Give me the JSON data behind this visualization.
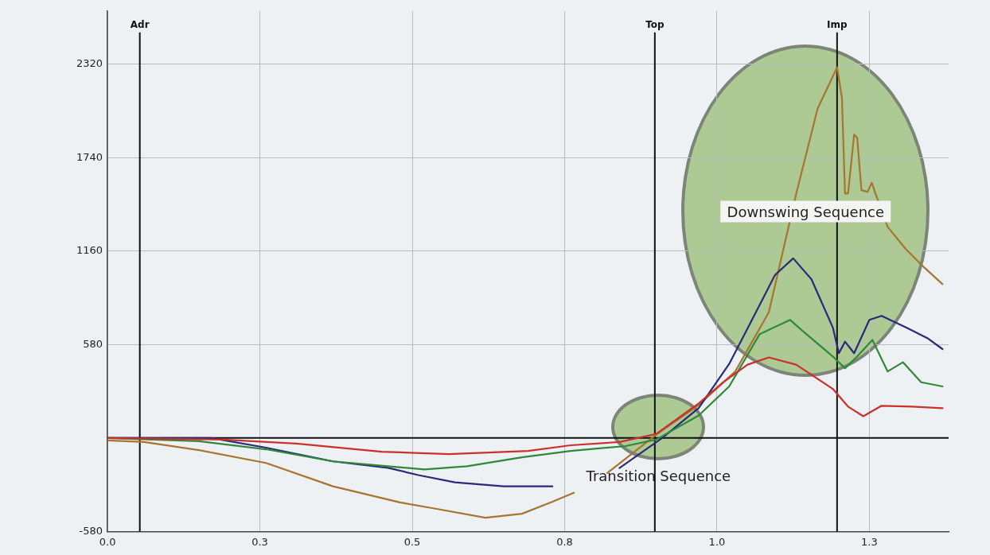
{
  "chart_data": {
    "type": "line",
    "xlim": [
      0,
      1.38
    ],
    "ylim": [
      -580,
      2650
    ],
    "xticks": [
      {
        "value": 0,
        "label": "0.0"
      },
      {
        "value": 0.25,
        "label": "0.3"
      },
      {
        "value": 0.5,
        "label": "0.5"
      },
      {
        "value": 0.75,
        "label": "0.8"
      },
      {
        "value": 1,
        "label": "1.0"
      },
      {
        "value": 1.25,
        "label": "1.3"
      }
    ],
    "yticks": [
      -580,
      {
        "value": 0,
        "label": null
      },
      580,
      1160,
      1740,
      2320
    ],
    "grid": true,
    "legend": false,
    "marker": "none",
    "line_style": "solid",
    "ref_lines": [
      {
        "axis": "x",
        "value": 0.053,
        "label": "Adr",
        "color": "#111111"
      },
      {
        "axis": "x",
        "value": 0.898,
        "label": "Top",
        "color": "#111111"
      },
      {
        "axis": "x",
        "value": 1.197,
        "label": "Imp",
        "color": "#111111"
      },
      {
        "axis": "y",
        "value": 0,
        "label": null,
        "color": "#111111"
      }
    ],
    "annotations": [
      "Downswing Sequence",
      "Transition Sequence"
    ],
    "series": [
      {
        "color": "#c8322a",
        "x": [
          0,
          0.19,
          0.31,
          0.45,
          0.56,
          0.69,
          0.76,
          0.84,
          0.9,
          0.97,
          1.01,
          1.05,
          1.085,
          1.13,
          1.19,
          1.215,
          1.24,
          1.27,
          1.32,
          1.37
        ],
        "values": [
          0,
          -10,
          -35,
          -85,
          -100,
          -80,
          -45,
          -25,
          25,
          215,
          345,
          455,
          500,
          455,
          305,
          195,
          135,
          200,
          195,
          185
        ]
      },
      {
        "color": "#2e8a3a",
        "x": [
          0,
          0.15,
          0.26,
          0.37,
          0.46,
          0.52,
          0.59,
          0.68,
          0.76,
          0.85,
          0.9,
          0.97,
          1.02,
          1.07,
          1.12,
          1.14,
          1.19,
          1.21,
          1.23,
          1.255,
          1.28,
          1.305,
          1.335,
          1.37
        ],
        "values": [
          0,
          -20,
          -70,
          -145,
          -175,
          -195,
          -175,
          -120,
          -80,
          -50,
          -10,
          140,
          320,
          645,
          733,
          666,
          506,
          433,
          506,
          609,
          413,
          470,
          346,
          320
        ]
      },
      {
        "color": "#2b2a7a",
        "x": [
          0,
          0.17,
          0.26,
          0.37,
          0.46,
          0.51,
          0.57,
          0.65,
          0.73,
          0.78,
          0.84,
          0.91,
          0.97,
          1.02,
          1.07,
          1.095,
          1.125,
          1.155,
          1.19,
          1.2,
          1.21,
          1.225,
          1.25,
          1.27,
          1.31,
          1.345,
          1.37
        ],
        "values": [
          0,
          0,
          -60,
          -145,
          -185,
          -230,
          -275,
          -300,
          -300,
          null,
          -186,
          0,
          186,
          460,
          826,
          1011,
          1115,
          985,
          686,
          526,
          598,
          526,
          733,
          758,
          686,
          620,
          552
        ]
      },
      {
        "color": "#a8752e",
        "x": [
          0,
          0.06,
          0.15,
          0.26,
          0.37,
          0.48,
          0.54,
          0.62,
          0.68,
          0.73,
          0.765,
          0.79,
          0.82,
          0.9,
          0.97,
          1.03,
          1.085,
          1.13,
          1.165,
          1.197,
          1.205,
          1.21,
          1.215,
          1.225,
          1.23,
          1.237,
          1.247,
          1.254,
          1.26,
          1.28,
          1.31,
          1.34,
          1.37
        ],
        "values": [
          -15,
          -25,
          -75,
          -155,
          -300,
          -400,
          -440,
          -495,
          -470,
          -395,
          -340,
          null,
          -217,
          20,
          205,
          413,
          780,
          1517,
          2043,
          2300,
          2110,
          1517,
          1517,
          1883,
          1863,
          1538,
          1527,
          1584,
          1517,
          1310,
          1171,
          1058,
          955
        ]
      }
    ]
  }
}
